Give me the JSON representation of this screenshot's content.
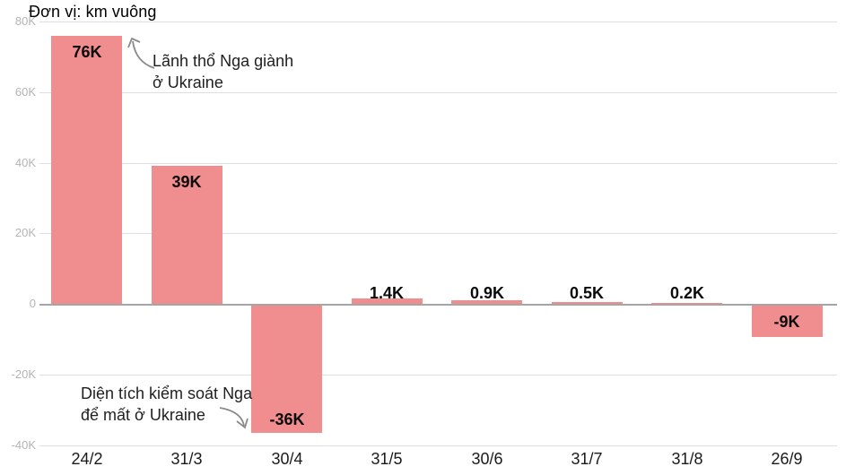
{
  "title": "Đơn vị: km vuông",
  "chart_data": {
    "type": "bar",
    "title": "Đơn vị: km vuông",
    "xlabel": "",
    "ylabel": "",
    "categories": [
      "24/2",
      "31/3",
      "30/4",
      "31/5",
      "30/6",
      "31/7",
      "31/8",
      "26/9"
    ],
    "values": [
      76,
      39,
      -36,
      1.4,
      0.9,
      0.5,
      0.2,
      -9
    ],
    "value_labels": [
      "76K",
      "39K",
      "-36K",
      "1.4K",
      "0.9K",
      "0.5K",
      "0.2K",
      "-9K"
    ],
    "unit_note": "km vuông (thousands, K)",
    "ylim": [
      -40,
      80
    ],
    "yticks": [
      80,
      60,
      40,
      20,
      0,
      -20,
      -40
    ],
    "ytick_labels": [
      "80K",
      "60K",
      "40K",
      "20K",
      "0",
      "-20K",
      "-40K"
    ],
    "grid": "horizontal",
    "legend": "none",
    "bar_color": "#f08d8e",
    "annotations": [
      {
        "id": "gain",
        "line1": "Lãnh thổ Nga giành",
        "line2": "ở Ukraine",
        "target_category": "24/2"
      },
      {
        "id": "loss",
        "line1": "Diện tích kiểm soát Nga",
        "line2": "để mất ở Ukraine",
        "target_category": "30/4"
      }
    ]
  },
  "colors": {
    "bar": "#f08d8e",
    "gridline": "#dedede",
    "zero_line": "#a5a5a5",
    "ytick_text": "#b4b4b4",
    "xtick_text": "#1a1a1a",
    "value_text": "#0b0b0b",
    "annotation_text": "#1f1f1f",
    "arrow": "#8a8a8a",
    "background": "#ffffff"
  }
}
